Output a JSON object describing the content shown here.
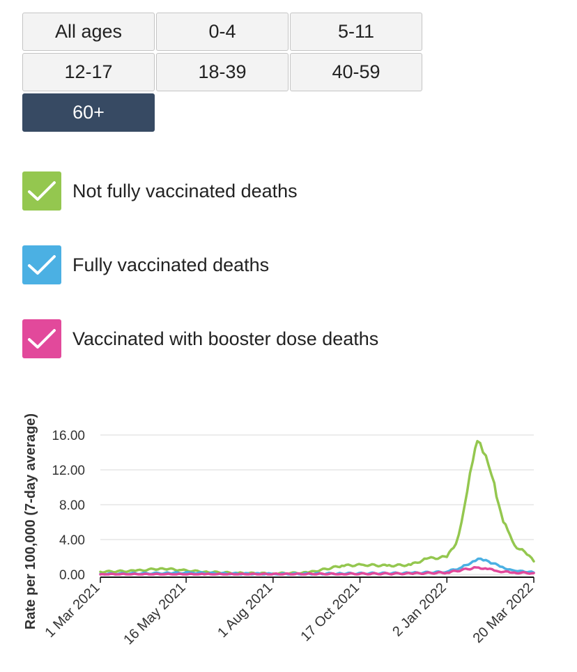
{
  "age_filters": [
    {
      "label": "All ages",
      "active": false
    },
    {
      "label": "0-4",
      "active": false
    },
    {
      "label": "5-11",
      "active": false
    },
    {
      "label": "12-17",
      "active": false
    },
    {
      "label": "18-39",
      "active": false
    },
    {
      "label": "40-59",
      "active": false
    },
    {
      "label": "60+",
      "active": true
    }
  ],
  "legend": [
    {
      "label": "Not fully vaccinated deaths",
      "color": "#94c74f",
      "icon": "checkmark-icon",
      "checked": true
    },
    {
      "label": "Fully vaccinated deaths",
      "color": "#4bb0e3",
      "icon": "checkmark-icon",
      "checked": true
    },
    {
      "label": "Vaccinated with booster dose deaths",
      "color": "#e2499b",
      "icon": "checkmark-icon",
      "checked": true
    }
  ],
  "chart_data": {
    "type": "line",
    "title": "",
    "xlabel": "",
    "ylabel": "Rate per 100,000 (7-day average)",
    "ylim": [
      0,
      16
    ],
    "yticks": [
      0,
      4,
      8,
      12,
      16
    ],
    "ytick_labels": [
      "0.00",
      "4.00",
      "8.00",
      "12.00",
      "16.00"
    ],
    "xlim": [
      "2021-03-01",
      "2022-03-20"
    ],
    "xticks": [
      "2021-03-01",
      "2021-05-16",
      "2021-08-01",
      "2021-10-17",
      "2022-01-02",
      "2022-03-20"
    ],
    "xtick_labels": [
      "1 Mar 2021",
      "16 May 2021",
      "1 Aug 2021",
      "17 Oct 2021",
      "2 Jan 2022",
      "20 Mar 2022"
    ],
    "grid": "horizontal",
    "series": [
      {
        "name": "Not fully vaccinated deaths",
        "color": "#94c74f",
        "points": [
          [
            "2021-03-01",
            0.3
          ],
          [
            "2021-04-01",
            0.4
          ],
          [
            "2021-04-25",
            0.7
          ],
          [
            "2021-05-10",
            0.5
          ],
          [
            "2021-06-01",
            0.3
          ],
          [
            "2021-07-01",
            0.15
          ],
          [
            "2021-08-01",
            0.1
          ],
          [
            "2021-09-01",
            0.2
          ],
          [
            "2021-10-01",
            1.0
          ],
          [
            "2021-10-20",
            1.1
          ],
          [
            "2021-11-10",
            1.0
          ],
          [
            "2021-12-01",
            1.1
          ],
          [
            "2021-12-15",
            1.8
          ],
          [
            "2022-01-02",
            2.0
          ],
          [
            "2022-01-10",
            3.5
          ],
          [
            "2022-01-15",
            6.0
          ],
          [
            "2022-01-20",
            9.5
          ],
          [
            "2022-01-25",
            13.0
          ],
          [
            "2022-01-29",
            15.3
          ],
          [
            "2022-02-03",
            14.0
          ],
          [
            "2022-02-08",
            12.5
          ],
          [
            "2022-02-13",
            10.5
          ],
          [
            "2022-02-17",
            8.0
          ],
          [
            "2022-02-21",
            6.0
          ],
          [
            "2022-02-27",
            4.5
          ],
          [
            "2022-03-05",
            3.0
          ],
          [
            "2022-03-12",
            2.6
          ],
          [
            "2022-03-20",
            1.5
          ]
        ]
      },
      {
        "name": "Fully vaccinated deaths",
        "color": "#4bb0e3",
        "points": [
          [
            "2021-03-01",
            0.05
          ],
          [
            "2021-05-01",
            0.15
          ],
          [
            "2021-05-20",
            0.2
          ],
          [
            "2021-06-15",
            0.1
          ],
          [
            "2021-08-01",
            0.05
          ],
          [
            "2021-10-01",
            0.1
          ],
          [
            "2021-12-01",
            0.15
          ],
          [
            "2022-01-02",
            0.3
          ],
          [
            "2022-01-15",
            0.8
          ],
          [
            "2022-01-25",
            1.5
          ],
          [
            "2022-02-01",
            1.8
          ],
          [
            "2022-02-08",
            1.5
          ],
          [
            "2022-02-18",
            0.9
          ],
          [
            "2022-03-01",
            0.5
          ],
          [
            "2022-03-10",
            0.4
          ],
          [
            "2022-03-20",
            0.2
          ]
        ]
      },
      {
        "name": "Vaccinated with booster dose deaths",
        "color": "#e2499b",
        "points": [
          [
            "2021-03-01",
            0.0
          ],
          [
            "2021-06-01",
            0.0
          ],
          [
            "2021-10-01",
            0.05
          ],
          [
            "2021-12-01",
            0.1
          ],
          [
            "2022-01-02",
            0.2
          ],
          [
            "2022-01-15",
            0.5
          ],
          [
            "2022-01-28",
            0.8
          ],
          [
            "2022-02-05",
            0.7
          ],
          [
            "2022-02-15",
            0.4
          ],
          [
            "2022-03-01",
            0.2
          ],
          [
            "2022-03-20",
            0.15
          ]
        ]
      }
    ]
  }
}
